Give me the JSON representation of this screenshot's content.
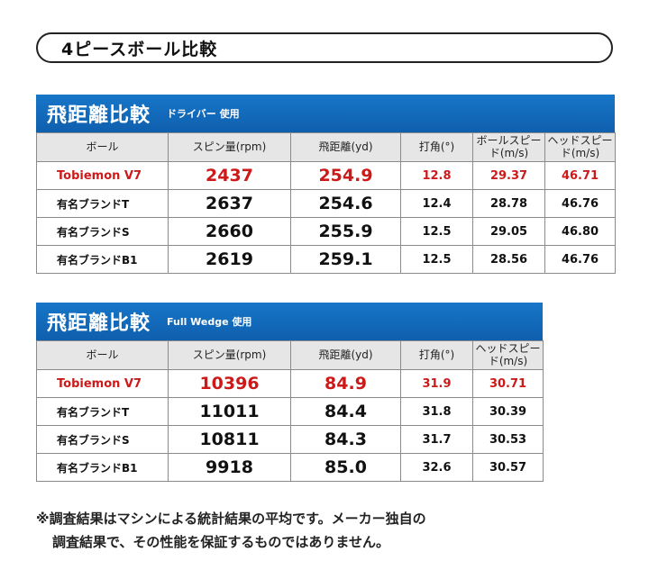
{
  "page_title": "4ピースボール比較",
  "table1": {
    "title": "飛距離比較",
    "subtitle": "ドライバー 使用",
    "headers": [
      "ボール",
      "スピン量(rpm)",
      "飛距離(yd)",
      "打角(°)",
      "ボールスピード(m/s)",
      "ヘッドスピード(m/s)"
    ],
    "rows": [
      {
        "name": "Tobiemon V7",
        "spin": "2437",
        "distance": "254.9",
        "angle": "12.8",
        "ball_speed": "29.37",
        "head_speed": "46.71",
        "highlight": true
      },
      {
        "name": "有名ブランドT",
        "spin": "2637",
        "distance": "254.6",
        "angle": "12.4",
        "ball_speed": "28.78",
        "head_speed": "46.76"
      },
      {
        "name": "有名ブランドS",
        "spin": "2660",
        "distance": "255.9",
        "angle": "12.5",
        "ball_speed": "29.05",
        "head_speed": "46.80"
      },
      {
        "name": "有名ブランドB1",
        "spin": "2619",
        "distance": "259.1",
        "angle": "12.5",
        "ball_speed": "28.56",
        "head_speed": "46.76"
      }
    ]
  },
  "table2": {
    "title": "飛距離比較",
    "subtitle": "Full Wedge 使用",
    "headers": [
      "ボール",
      "スピン量(rpm)",
      "飛距離(yd)",
      "打角(°)",
      "ヘッドスピード(m/s)"
    ],
    "rows": [
      {
        "name": "Tobiemon V7",
        "spin": "10396",
        "distance": "84.9",
        "angle": "31.9",
        "head_speed": "30.71",
        "highlight": true
      },
      {
        "name": "有名ブランドT",
        "spin": "11011",
        "distance": "84.4",
        "angle": "31.8",
        "head_speed": "30.39"
      },
      {
        "name": "有名ブランドS",
        "spin": "10811",
        "distance": "84.3",
        "angle": "31.7",
        "head_speed": "30.53"
      },
      {
        "name": "有名ブランドB1",
        "spin": "9918",
        "distance": "85.0",
        "angle": "32.6",
        "head_speed": "30.57"
      }
    ]
  },
  "note": {
    "line1": "※調査結果はマシンによる統計結果の平均です。メーカー独自の",
    "line2": "調査結果で、その性能を保証するものではありません。"
  },
  "colors": {
    "band": "#1776c8",
    "highlight_text": "#cc1a1a",
    "header_bg": "#e6e6e6"
  }
}
